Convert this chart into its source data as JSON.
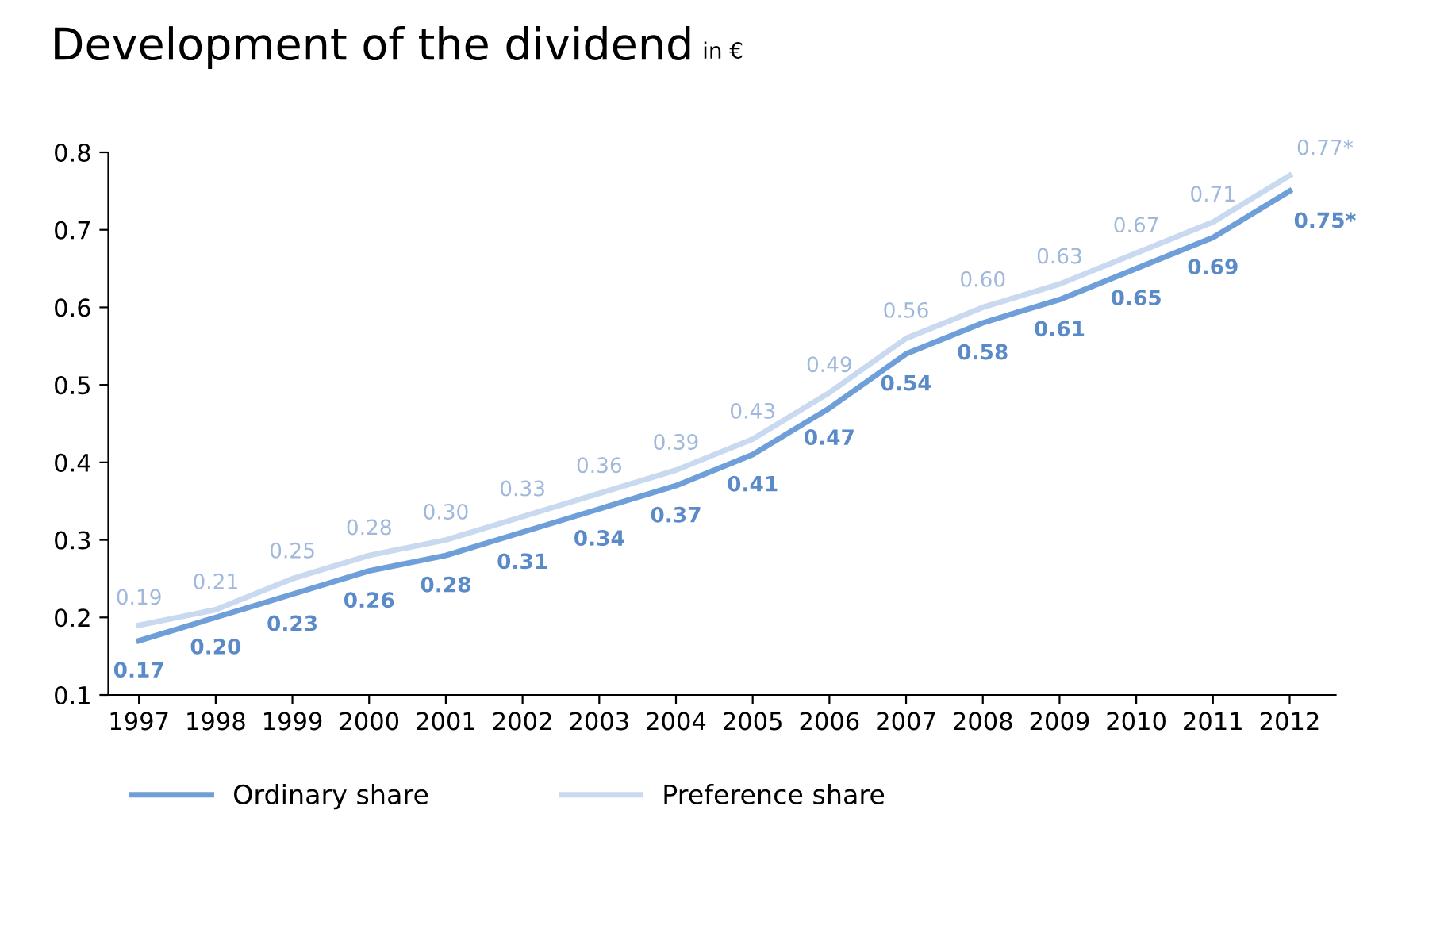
{
  "chart_data": {
    "type": "line",
    "title": "Development of the dividend",
    "subtitle": "in €",
    "categories": [
      "1997",
      "1998",
      "1999",
      "2000",
      "2001",
      "2002",
      "2003",
      "2004",
      "2005",
      "2006",
      "2007",
      "2008",
      "2009",
      "2010",
      "2011",
      "2012"
    ],
    "series": [
      {
        "name": "Ordinary share",
        "color": "#6f9fd8",
        "values": [
          0.17,
          0.2,
          0.23,
          0.26,
          0.28,
          0.31,
          0.34,
          0.37,
          0.41,
          0.47,
          0.54,
          0.58,
          0.61,
          0.65,
          0.69,
          0.75
        ],
        "value_labels": [
          "0.17",
          "0.20",
          "0.23",
          "0.26",
          "0.28",
          "0.31",
          "0.34",
          "0.37",
          "0.41",
          "0.47",
          "0.54",
          "0.58",
          "0.61",
          "0.65",
          "0.69",
          "0.75*"
        ]
      },
      {
        "name": "Preference share",
        "color": "#c9d9ef",
        "values": [
          0.19,
          0.21,
          0.25,
          0.28,
          0.3,
          0.33,
          0.36,
          0.39,
          0.43,
          0.49,
          0.56,
          0.6,
          0.63,
          0.67,
          0.71,
          0.77
        ],
        "value_labels": [
          "0.19",
          "0.21",
          "0.25",
          "0.28",
          "0.30",
          "0.33",
          "0.36",
          "0.39",
          "0.43",
          "0.49",
          "0.56",
          "0.60",
          "0.63",
          "0.67",
          "0.71",
          "0.77*"
        ]
      }
    ],
    "ylim": [
      0.1,
      0.8
    ],
    "yticks": [
      0.1,
      0.2,
      0.3,
      0.4,
      0.5,
      0.6,
      0.7,
      0.8
    ],
    "grid": false,
    "legend": "bottom",
    "marker": "none",
    "line_style": "solid"
  }
}
